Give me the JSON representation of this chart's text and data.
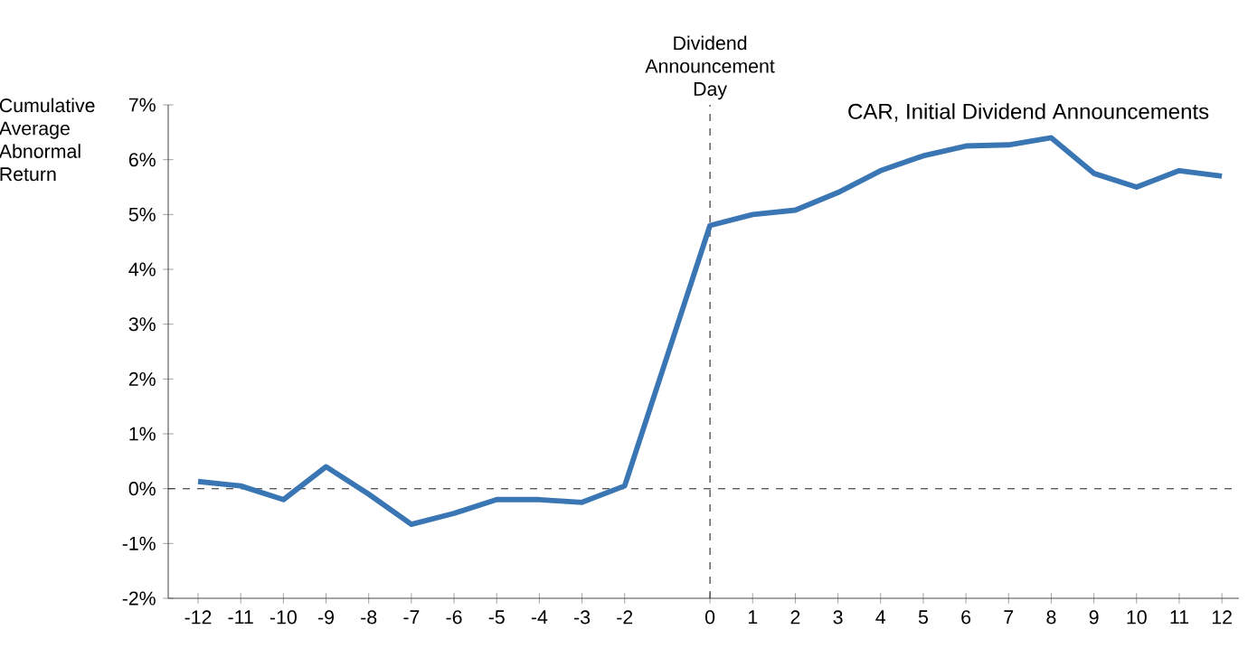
{
  "chart_data": {
    "type": "line",
    "title": "CAR, Initial Dividend Announcements",
    "ylabel": "Cumulative Average Abnormal Return",
    "series": [
      {
        "color": "#3a76b3",
        "x": [
          -12,
          -11,
          -10,
          -9,
          -8,
          -7,
          -6,
          -5,
          -4,
          -3,
          -2,
          0,
          1,
          2,
          3,
          4,
          5,
          6,
          7,
          8,
          9,
          10,
          11,
          12
        ],
        "values": [
          0.13,
          0.05,
          -0.2,
          0.4,
          -0.1,
          -0.65,
          -0.45,
          -0.2,
          -0.2,
          -0.25,
          0.05,
          4.8,
          5.0,
          5.08,
          5.4,
          5.8,
          6.07,
          6.25,
          6.27,
          6.4,
          5.75,
          5.5,
          5.8,
          5.7
        ]
      }
    ],
    "xlim": [
      -12.7,
      12.4
    ],
    "ylim": [
      -2,
      7
    ],
    "xticks": [
      -12,
      -11,
      -10,
      -9,
      -8,
      -7,
      -6,
      -5,
      -4,
      -3,
      -2,
      0,
      1,
      2,
      3,
      4,
      5,
      6,
      7,
      8,
      9,
      10,
      11,
      12
    ],
    "yticks": [
      {
        "value": -2,
        "label": "-2%"
      },
      {
        "value": -1,
        "label": "-1%"
      },
      {
        "value": 0,
        "label": "0%"
      },
      {
        "value": 1,
        "label": "1%"
      },
      {
        "value": 2,
        "label": "2%"
      },
      {
        "value": 3,
        "label": "3%"
      },
      {
        "value": 4,
        "label": "4%"
      },
      {
        "value": 5,
        "label": "5%"
      },
      {
        "value": 6,
        "label": "6%"
      },
      {
        "value": 7,
        "label": "7%"
      }
    ],
    "ref_lines": [
      {
        "axis": "x",
        "value": 0,
        "label": "Dividend Announcement Day",
        "line_style": "dashed",
        "color": "#222222"
      },
      {
        "axis": "y",
        "value": 0,
        "line_style": "dashed",
        "color": "#222222"
      }
    ],
    "grid": false,
    "marker": "none",
    "line_style": "solid"
  }
}
